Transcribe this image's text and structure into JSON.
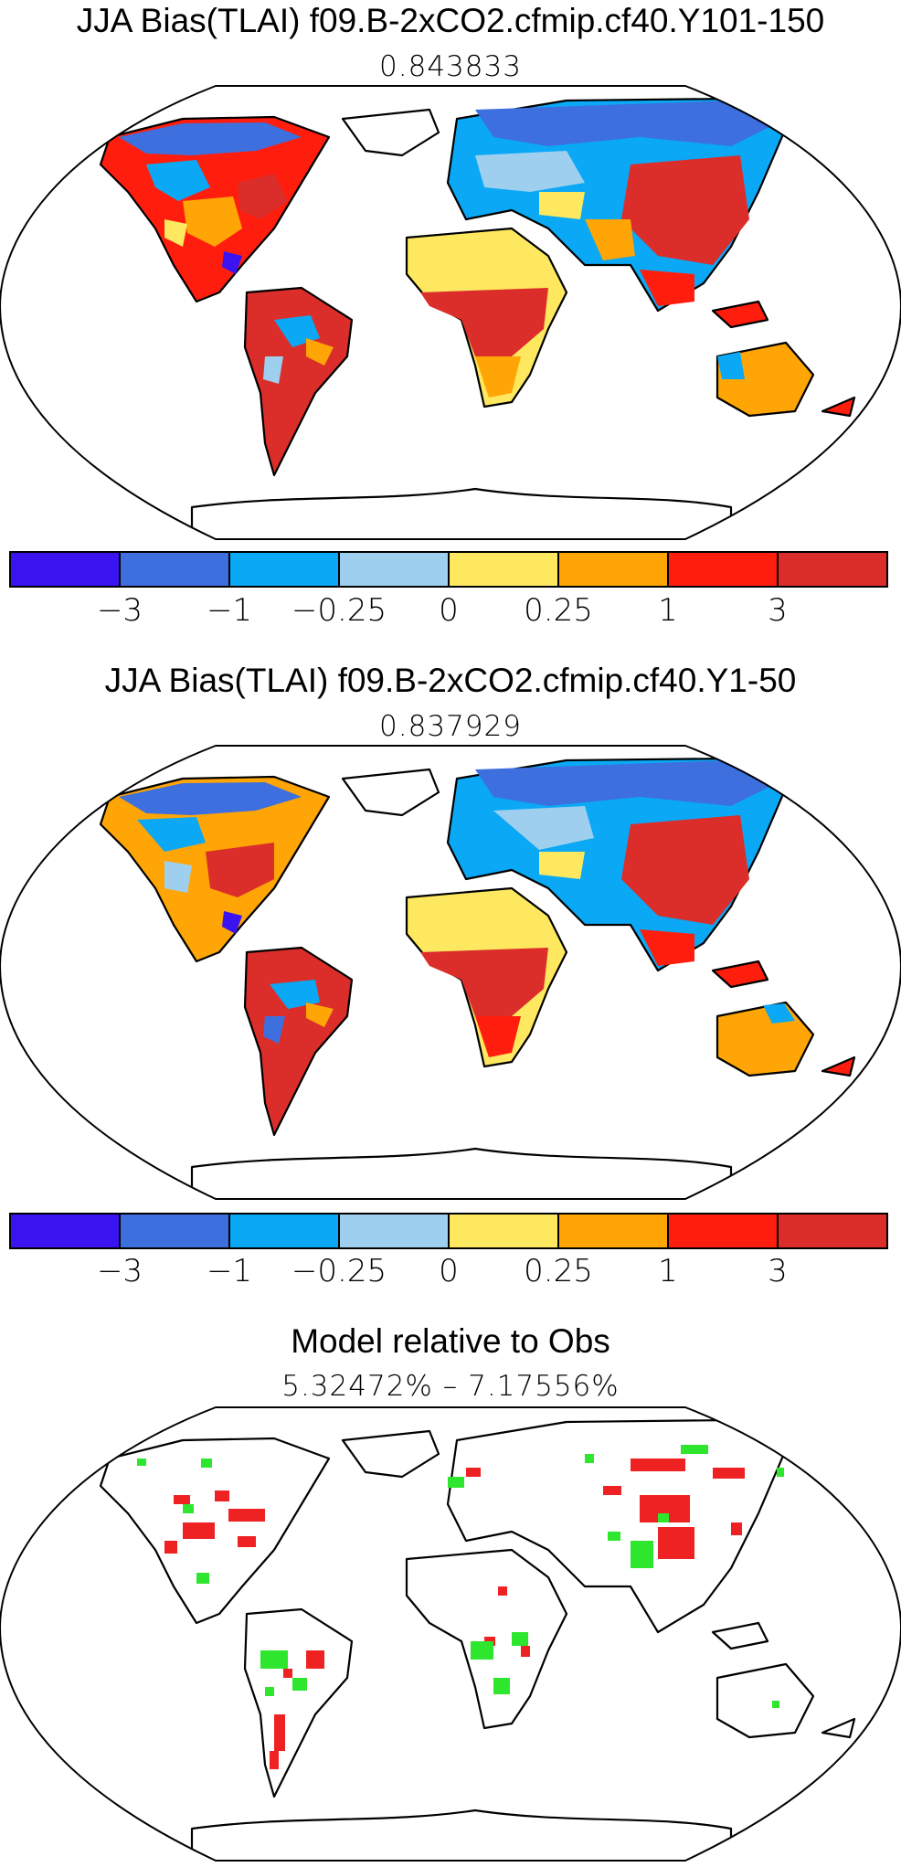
{
  "panels": [
    {
      "title": "JJA Bias(TLAI) f09.B-2xCO2.cfmip.cf40.Y101-150",
      "subtitle": "0.843833"
    },
    {
      "title": "JJA Bias(TLAI) f09.B-2xCO2.cfmip.cf40.Y1-50",
      "subtitle": "0.837929"
    },
    {
      "title": "Model relative to Obs",
      "subtitle": "5.32472% – 7.17556%"
    }
  ],
  "colorbar": {
    "colors": [
      "#3a14f0",
      "#3d6fde",
      "#0aa8f5",
      "#9ecfee",
      "#fde85f",
      "#ffa505",
      "#ff1e0e",
      "#db2e2b"
    ],
    "labels": [
      "−3",
      "−1",
      "−0.25",
      "0",
      "0.25",
      "1",
      "3"
    ]
  },
  "significance_colors": {
    "better": "#2ee62e",
    "worse": "#ee2222"
  }
}
